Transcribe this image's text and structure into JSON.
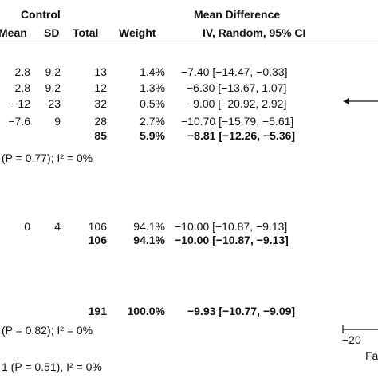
{
  "chart_data": {
    "type": "table",
    "group_header": "Control",
    "effect_header": "Mean Difference",
    "columns": {
      "mean": "Mean",
      "sd": "SD",
      "total": "Total",
      "weight": "Weight",
      "ci": "IV, Random, 95% CI"
    },
    "rows": [
      {
        "mean": "2.8",
        "sd": "9.2",
        "total": "13",
        "weight": "1.4%",
        "ci": "−7.40 [−14.47, −0.33]",
        "md": -7.4
      },
      {
        "mean": "2.8",
        "sd": "9.2",
        "total": "12",
        "weight": "1.3%",
        "ci": "−6.30 [−13.67, 1.07]",
        "md": -6.3
      },
      {
        "mean": "−12",
        "sd": "23",
        "total": "32",
        "weight": "0.5%",
        "ci": "−9.00 [−20.92, 2.92]",
        "md": -9.0
      },
      {
        "mean": "−7.6",
        "sd": "9",
        "total": "28",
        "weight": "2.7%",
        "ci": "−10.70 [−15.79, −5.61]",
        "md": -10.7
      }
    ],
    "subtotal1": {
      "total": "85",
      "weight": "5.9%",
      "ci": "−8.81 [−12.26, −5.36]",
      "md": -8.81
    },
    "het1": "(P = 0.77); I² = 0%",
    "rows2": [
      {
        "mean": "0",
        "sd": "4",
        "total": "106",
        "weight": "94.1%",
        "ci": "−10.00 [−10.87, −9.13]",
        "md": -10.0
      }
    ],
    "subtotal2": {
      "total": "106",
      "weight": "94.1%",
      "ci": "−10.00 [−10.87, −9.13]",
      "md": -10.0
    },
    "overall": {
      "total": "191",
      "weight": "100.0%",
      "ci": "−9.93 [−10.77, −9.09]",
      "md": -9.93
    },
    "het_overall": "(P = 0.82); I² = 0%",
    "subgroup_test": "1 (P = 0.51), I² = 0%",
    "axis_tick": "−20",
    "axis_label_fragment": "Fa"
  }
}
